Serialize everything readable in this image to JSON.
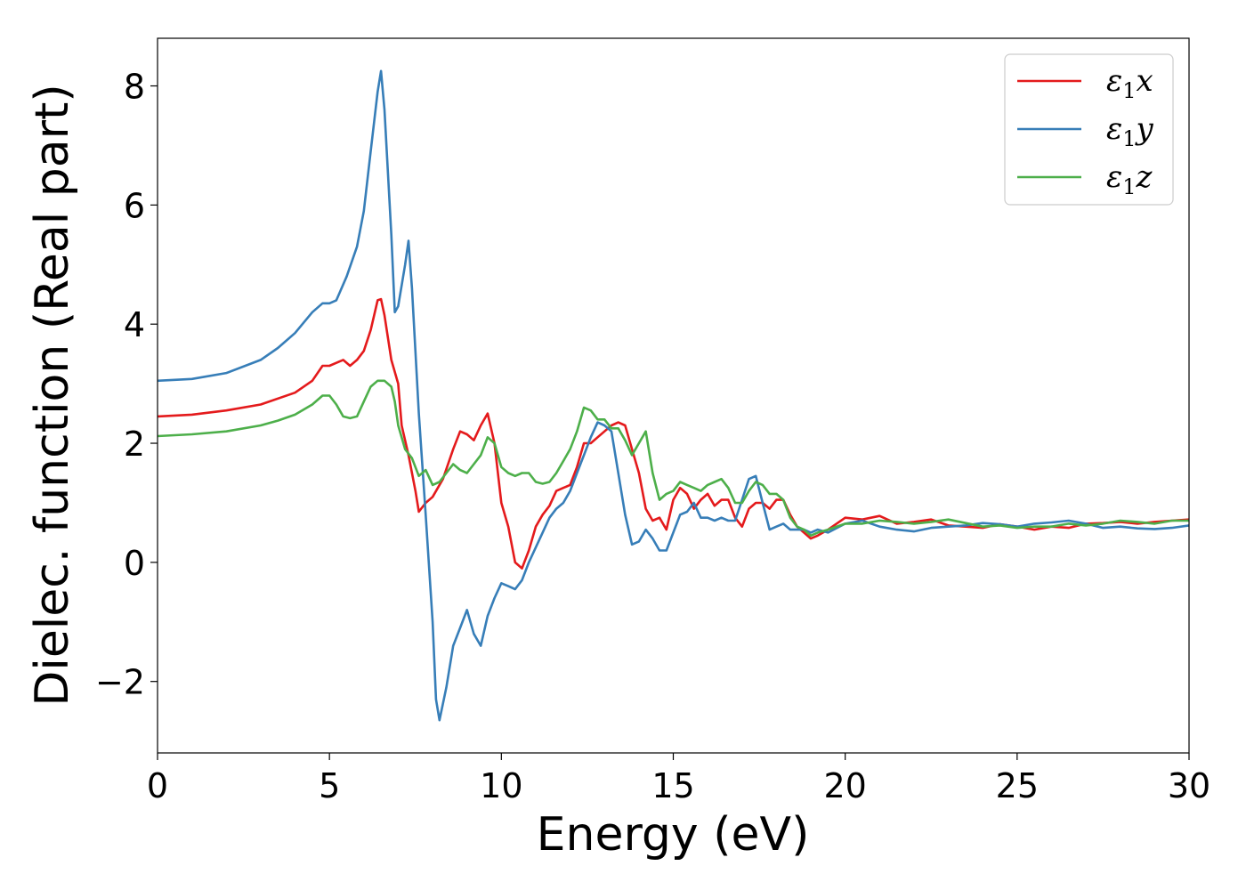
{
  "chart_data": {
    "type": "line",
    "title": "",
    "xlabel": "Energy (eV)",
    "ylabel": "Dielec. function (Real part)",
    "xlim": [
      0,
      30
    ],
    "ylim": [
      -3.2,
      8.8
    ],
    "xticks": [
      0,
      5,
      10,
      15,
      20,
      25,
      30
    ],
    "xtick_labels": [
      "0",
      "5",
      "10",
      "15",
      "20",
      "25",
      "30"
    ],
    "yticks": [
      -2,
      0,
      2,
      4,
      6,
      8
    ],
    "ytick_labels": [
      "−2",
      "0",
      "2",
      "4",
      "6",
      "8"
    ],
    "grid": false,
    "legend_position": "top-right",
    "series": [
      {
        "name": "ε1x",
        "legend_symbol": "ε",
        "legend_sub": "1",
        "legend_suffix": "x",
        "color": "#e41a1c",
        "x": [
          0,
          1,
          2,
          3,
          4,
          4.5,
          4.8,
          5.0,
          5.2,
          5.4,
          5.6,
          5.8,
          6.0,
          6.2,
          6.4,
          6.5,
          6.6,
          6.8,
          7.0,
          7.1,
          7.3,
          7.5,
          7.6,
          7.8,
          8.0,
          8.3,
          8.6,
          8.8,
          9.0,
          9.2,
          9.4,
          9.6,
          9.8,
          10.0,
          10.2,
          10.4,
          10.6,
          10.8,
          11.0,
          11.2,
          11.4,
          11.6,
          11.8,
          12.0,
          12.2,
          12.4,
          12.6,
          12.8,
          13.0,
          13.2,
          13.4,
          13.6,
          13.8,
          14.0,
          14.2,
          14.4,
          14.6,
          14.8,
          15.0,
          15.2,
          15.4,
          15.6,
          15.8,
          16.0,
          16.2,
          16.4,
          16.6,
          16.8,
          17.0,
          17.2,
          17.4,
          17.6,
          17.8,
          18.0,
          18.2,
          18.4,
          18.6,
          18.8,
          19.0,
          19.2,
          19.5,
          20.0,
          20.5,
          21.0,
          21.5,
          22.0,
          22.5,
          23.0,
          23.5,
          24.0,
          24.5,
          25.0,
          25.5,
          26.0,
          26.5,
          27.0,
          27.5,
          28.0,
          28.5,
          29.0,
          29.5,
          30.0
        ],
        "y": [
          2.45,
          2.48,
          2.55,
          2.65,
          2.85,
          3.05,
          3.3,
          3.3,
          3.35,
          3.4,
          3.3,
          3.4,
          3.55,
          3.9,
          4.4,
          4.42,
          4.15,
          3.4,
          3.0,
          2.3,
          1.8,
          1.2,
          0.85,
          1.0,
          1.1,
          1.4,
          1.9,
          2.2,
          2.15,
          2.05,
          2.3,
          2.5,
          2.0,
          1.0,
          0.6,
          0.0,
          -0.1,
          0.2,
          0.6,
          0.8,
          0.95,
          1.2,
          1.25,
          1.3,
          1.6,
          2.0,
          2.0,
          2.1,
          2.2,
          2.3,
          2.35,
          2.3,
          1.9,
          1.5,
          0.9,
          0.7,
          0.75,
          0.55,
          1.05,
          1.25,
          1.15,
          0.9,
          1.05,
          1.15,
          0.95,
          1.05,
          1.05,
          0.75,
          0.6,
          0.9,
          1.0,
          1.0,
          0.9,
          1.05,
          1.05,
          0.8,
          0.6,
          0.5,
          0.4,
          0.45,
          0.55,
          0.75,
          0.72,
          0.78,
          0.65,
          0.68,
          0.72,
          0.62,
          0.6,
          0.58,
          0.64,
          0.6,
          0.55,
          0.6,
          0.58,
          0.65,
          0.66,
          0.68,
          0.65,
          0.68,
          0.7,
          0.72
        ]
      },
      {
        "name": "ε1y",
        "legend_symbol": "ε",
        "legend_sub": "1",
        "legend_suffix": "y",
        "color": "#377eb8",
        "x": [
          0,
          1,
          2,
          3,
          3.5,
          4.0,
          4.5,
          4.8,
          5.0,
          5.2,
          5.5,
          5.8,
          6.0,
          6.2,
          6.4,
          6.5,
          6.6,
          6.8,
          6.9,
          7.0,
          7.2,
          7.3,
          7.4,
          7.6,
          7.8,
          8.0,
          8.1,
          8.2,
          8.4,
          8.6,
          8.8,
          9.0,
          9.2,
          9.4,
          9.6,
          9.8,
          10.0,
          10.2,
          10.4,
          10.6,
          10.8,
          11.0,
          11.2,
          11.4,
          11.6,
          11.8,
          12.0,
          12.2,
          12.4,
          12.6,
          12.8,
          13.0,
          13.2,
          13.4,
          13.6,
          13.8,
          14.0,
          14.2,
          14.4,
          14.6,
          14.8,
          15.0,
          15.2,
          15.4,
          15.6,
          15.8,
          16.0,
          16.2,
          16.4,
          16.6,
          16.8,
          17.0,
          17.2,
          17.4,
          17.6,
          17.8,
          18.0,
          18.2,
          18.4,
          18.6,
          18.8,
          19.0,
          19.2,
          19.5,
          20.0,
          20.5,
          21.0,
          21.5,
          22.0,
          22.5,
          23.0,
          23.5,
          24.0,
          24.5,
          25.0,
          25.5,
          26.0,
          26.5,
          27.0,
          27.5,
          28.0,
          28.5,
          29.0,
          29.5,
          30.0
        ],
        "y": [
          3.05,
          3.08,
          3.18,
          3.4,
          3.6,
          3.85,
          4.2,
          4.35,
          4.35,
          4.4,
          4.8,
          5.3,
          5.9,
          6.9,
          7.9,
          8.25,
          7.6,
          5.5,
          4.2,
          4.3,
          5.0,
          5.4,
          4.6,
          2.5,
          0.8,
          -1.0,
          -2.3,
          -2.65,
          -2.1,
          -1.4,
          -1.1,
          -0.8,
          -1.2,
          -1.4,
          -0.9,
          -0.6,
          -0.35,
          -0.4,
          -0.45,
          -0.3,
          0.0,
          0.25,
          0.5,
          0.75,
          0.9,
          1.0,
          1.2,
          1.5,
          1.8,
          2.1,
          2.35,
          2.3,
          2.2,
          1.5,
          0.8,
          0.3,
          0.35,
          0.55,
          0.4,
          0.2,
          0.2,
          0.5,
          0.8,
          0.85,
          1.0,
          0.75,
          0.75,
          0.7,
          0.75,
          0.7,
          0.7,
          1.05,
          1.4,
          1.45,
          1.0,
          0.55,
          0.6,
          0.65,
          0.55,
          0.55,
          0.55,
          0.5,
          0.55,
          0.5,
          0.65,
          0.7,
          0.6,
          0.55,
          0.52,
          0.58,
          0.6,
          0.62,
          0.66,
          0.64,
          0.6,
          0.65,
          0.67,
          0.7,
          0.65,
          0.58,
          0.6,
          0.57,
          0.56,
          0.58,
          0.62
        ]
      },
      {
        "name": "ε1z",
        "legend_symbol": "ε",
        "legend_sub": "1",
        "legend_suffix": "z",
        "color": "#4daf4a",
        "x": [
          0,
          1,
          2,
          3,
          3.5,
          4.0,
          4.5,
          4.8,
          5.0,
          5.2,
          5.4,
          5.6,
          5.8,
          6.0,
          6.2,
          6.4,
          6.6,
          6.8,
          6.9,
          7.0,
          7.2,
          7.4,
          7.6,
          7.8,
          8.0,
          8.2,
          8.4,
          8.6,
          8.8,
          9.0,
          9.2,
          9.4,
          9.6,
          9.8,
          10.0,
          10.2,
          10.4,
          10.6,
          10.8,
          11.0,
          11.2,
          11.4,
          11.6,
          11.8,
          12.0,
          12.2,
          12.4,
          12.6,
          12.8,
          13.0,
          13.2,
          13.4,
          13.6,
          13.8,
          14.0,
          14.2,
          14.4,
          14.6,
          14.8,
          15.0,
          15.2,
          15.4,
          15.6,
          15.8,
          16.0,
          16.2,
          16.4,
          16.6,
          16.8,
          17.0,
          17.2,
          17.4,
          17.6,
          17.8,
          18.0,
          18.2,
          18.4,
          18.6,
          18.8,
          19.0,
          19.2,
          19.5,
          20.0,
          20.5,
          21.0,
          21.5,
          22.0,
          22.5,
          23.0,
          23.5,
          24.0,
          24.5,
          25.0,
          25.5,
          26.0,
          26.5,
          27.0,
          27.5,
          28.0,
          28.5,
          29.0,
          29.5,
          30.0
        ],
        "y": [
          2.12,
          2.15,
          2.2,
          2.3,
          2.38,
          2.48,
          2.65,
          2.8,
          2.8,
          2.65,
          2.45,
          2.42,
          2.45,
          2.7,
          2.95,
          3.05,
          3.05,
          2.95,
          2.7,
          2.3,
          1.9,
          1.75,
          1.45,
          1.55,
          1.3,
          1.35,
          1.5,
          1.65,
          1.55,
          1.5,
          1.65,
          1.8,
          2.1,
          2.0,
          1.6,
          1.5,
          1.45,
          1.5,
          1.5,
          1.35,
          1.32,
          1.35,
          1.5,
          1.7,
          1.9,
          2.2,
          2.6,
          2.55,
          2.4,
          2.4,
          2.25,
          2.25,
          2.05,
          1.8,
          2.0,
          2.2,
          1.5,
          1.05,
          1.15,
          1.2,
          1.35,
          1.3,
          1.25,
          1.2,
          1.3,
          1.35,
          1.4,
          1.25,
          1.0,
          1.0,
          1.2,
          1.35,
          1.3,
          1.15,
          1.15,
          1.05,
          0.75,
          0.6,
          0.55,
          0.45,
          0.5,
          0.55,
          0.65,
          0.65,
          0.7,
          0.68,
          0.65,
          0.68,
          0.72,
          0.66,
          0.6,
          0.62,
          0.58,
          0.6,
          0.6,
          0.65,
          0.62,
          0.65,
          0.7,
          0.68,
          0.65,
          0.7,
          0.7
        ]
      }
    ]
  }
}
